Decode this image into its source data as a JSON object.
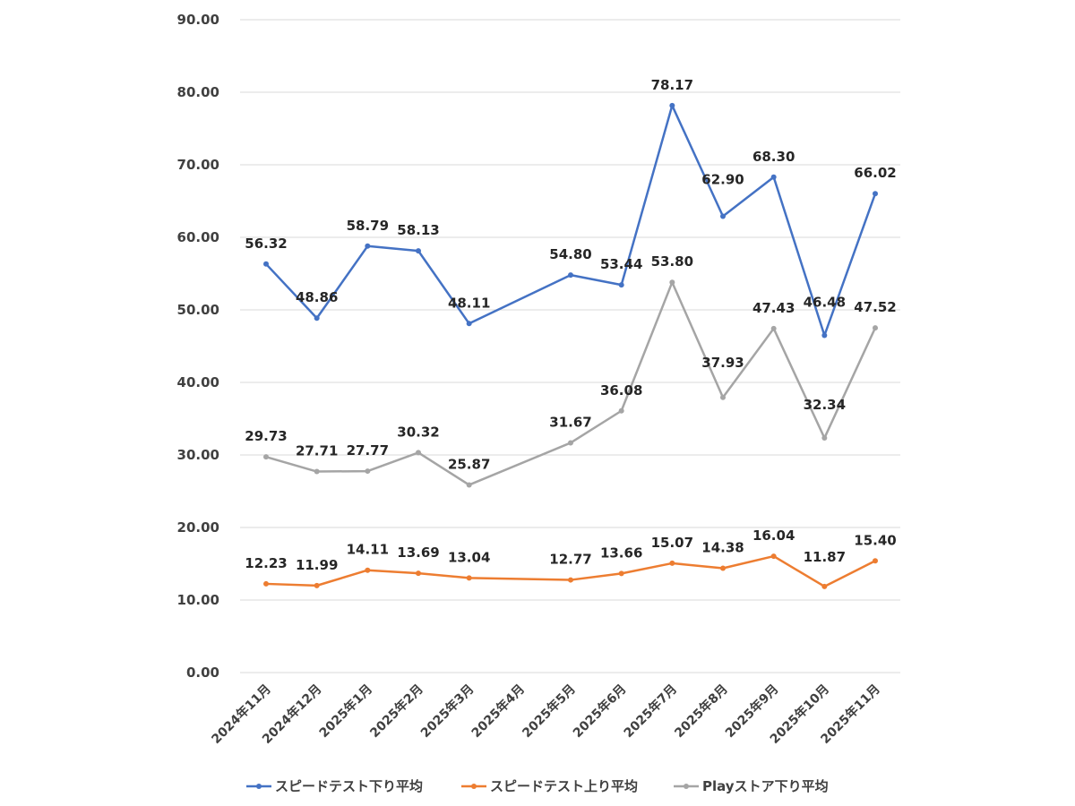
{
  "chart_data": {
    "type": "line",
    "title": "",
    "xlabel": "",
    "ylabel": "",
    "ylim": [
      0,
      90
    ],
    "y_ticks": [
      "0.00",
      "10.00",
      "20.00",
      "30.00",
      "40.00",
      "50.00",
      "60.00",
      "70.00",
      "80.00",
      "90.00"
    ],
    "y_tick_values": [
      0,
      10,
      20,
      30,
      40,
      50,
      60,
      70,
      80,
      90
    ],
    "grid": true,
    "legend_position": "bottom",
    "categories": [
      "2024年11月",
      "2024年12月",
      "2025年1月",
      "2025年2月",
      "2025年3月",
      "2025年4月",
      "2025年5月",
      "2025年6月",
      "2025年7月",
      "2025年8月",
      "2025年9月",
      "2025年10月",
      "2025年11月"
    ],
    "series": [
      {
        "name": "スピードテスト下り平均",
        "color": "#4472C4",
        "values": [
          56.32,
          48.86,
          58.79,
          58.13,
          48.11,
          null,
          54.8,
          53.44,
          78.17,
          62.9,
          68.3,
          46.48,
          66.02
        ],
        "labels": [
          "56.32",
          "48.86",
          "58.79",
          "58.13",
          "48.11",
          "",
          "54.80",
          "53.44",
          "78.17",
          "62.90",
          "68.30",
          "46.48",
          "66.02"
        ]
      },
      {
        "name": "スピードテスト上り平均",
        "color": "#ED7D31",
        "values": [
          12.23,
          11.99,
          14.11,
          13.69,
          13.04,
          null,
          12.77,
          13.66,
          15.07,
          14.38,
          16.04,
          11.87,
          15.4
        ],
        "labels": [
          "12.23",
          "11.99",
          "14.11",
          "13.69",
          "13.04",
          "",
          "12.77",
          "13.66",
          "15.07",
          "14.38",
          "16.04",
          "11.87",
          "15.40"
        ]
      },
      {
        "name": "Playストア下り平均",
        "color": "#A5A5A5",
        "values": [
          29.73,
          27.71,
          27.77,
          30.32,
          25.87,
          null,
          31.67,
          36.08,
          53.8,
          37.93,
          47.43,
          32.34,
          47.52
        ],
        "labels": [
          "29.73",
          "27.71",
          "27.77",
          "30.32",
          "25.87",
          "",
          "31.67",
          "36.08",
          "53.80",
          "37.93",
          "47.43",
          "32.34",
          "47.52"
        ]
      }
    ]
  }
}
